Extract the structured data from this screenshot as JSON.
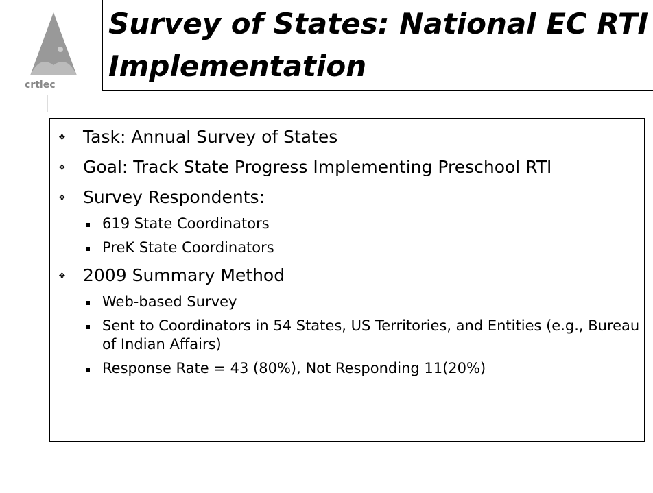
{
  "header": {
    "title": "Survey of States: National EC RTI Implementation"
  },
  "bullets": [
    {
      "text": "Task: Annual Survey of States",
      "sub": []
    },
    {
      "text": "Goal: Track State Progress Implementing Preschool RTI",
      "sub": []
    },
    {
      "text": "Survey Respondents:",
      "sub": [
        "619 State Coordinators",
        "PreK State Coordinators"
      ]
    },
    {
      "text": "2009 Summary Method",
      "sub": [
        "Web-based Survey",
        "Sent to Coordinators in 54 States, US Territories, and Entities (e.g., Bureau of Indian Affairs)",
        "Response Rate = 43 (80%), Not Responding 11(20%)"
      ]
    }
  ]
}
